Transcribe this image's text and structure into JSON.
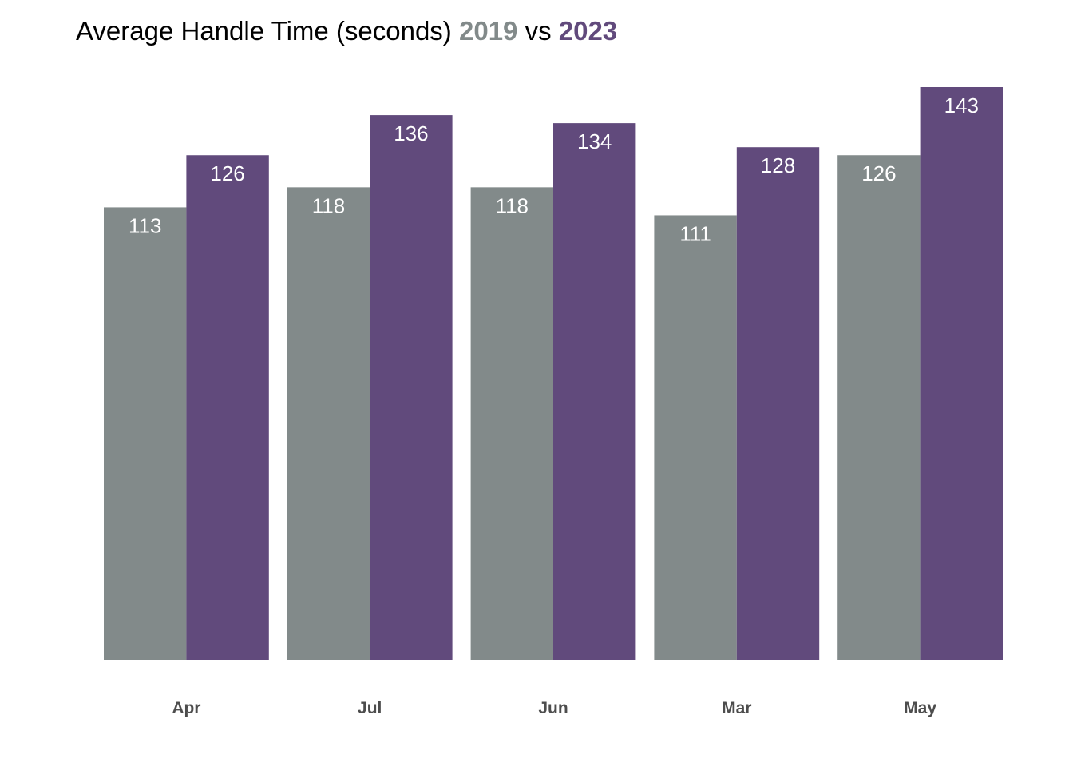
{
  "title": {
    "prefix": "Average Handle Time (seconds)",
    "year_a": "2019",
    "middle": "vs",
    "year_b": "2023"
  },
  "colors": {
    "series_2019": "#828a8a",
    "series_2023": "#614a7c"
  },
  "chart_data": {
    "type": "bar",
    "title": "Average Handle Time (seconds) 2019 vs 2023",
    "xlabel": "",
    "ylabel": "",
    "categories": [
      "Apr",
      "Jul",
      "Jun",
      "Mar",
      "May"
    ],
    "series": [
      {
        "name": "2019",
        "values": [
          113,
          118,
          118,
          111,
          126
        ]
      },
      {
        "name": "2023",
        "values": [
          126,
          136,
          134,
          128,
          143
        ]
      }
    ],
    "ylim": [
      0,
      143
    ],
    "grid": false,
    "legend": "none"
  }
}
